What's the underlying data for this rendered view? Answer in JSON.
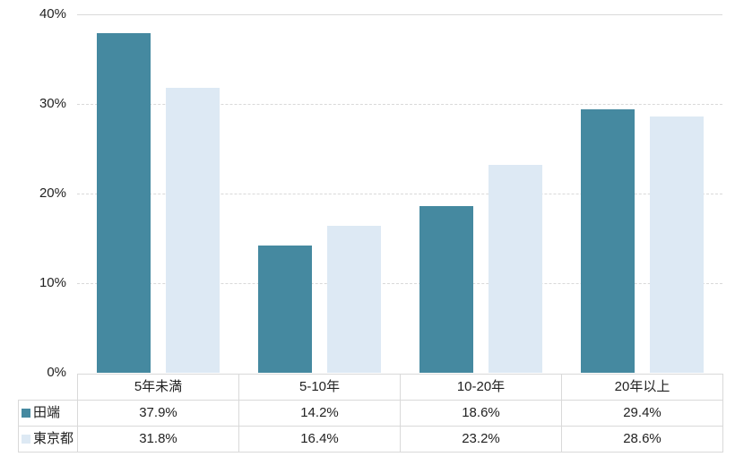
{
  "chart_data": {
    "type": "bar",
    "title": "",
    "categories": [
      "5年未満",
      "5-10年",
      "10-20年",
      "20年以上"
    ],
    "series": [
      {
        "name": "田端",
        "color": "#4589a0",
        "values": [
          37.9,
          14.2,
          18.6,
          29.4
        ],
        "labels": [
          "37.9%",
          "14.2%",
          "18.6%",
          "29.4%"
        ]
      },
      {
        "name": "東京都",
        "color": "#dde9f4",
        "values": [
          31.8,
          16.4,
          23.2,
          28.6
        ],
        "labels": [
          "31.8%",
          "16.4%",
          "23.2%",
          "28.6%"
        ]
      }
    ],
    "ylim": [
      0,
      40
    ],
    "yticks": [
      0,
      10,
      20,
      30,
      40
    ],
    "ytick_labels": [
      "0%",
      "10%",
      "20%",
      "30%",
      "40%"
    ],
    "grid": "horizontal dashed, top line solid",
    "legend_position": "data-table-left-keys",
    "data_table_shown": true
  },
  "colors": {
    "series1": "#4589a0",
    "series2": "#dde9f4",
    "gridline": "#d9d9d9",
    "table_border": "#d9d9d9",
    "text": "#222222",
    "background": "#ffffff"
  }
}
